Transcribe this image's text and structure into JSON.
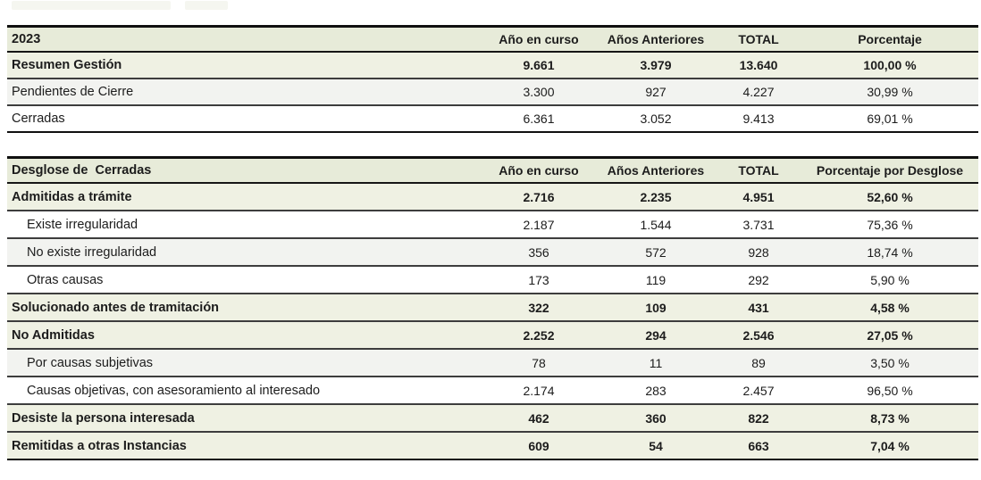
{
  "colors": {
    "header_bg": "#e7ebd9",
    "emphasis_row_bg": "#eff1e3",
    "alt_row_bg": "#f2f3f0",
    "table_border": "#101010",
    "row_separator": "#3d3d3d",
    "text": "#1c1c1c"
  },
  "tables": [
    {
      "title": "2023",
      "columns": [
        "Año en curso",
        "Años Anteriores",
        "TOTAL",
        "Porcentaje"
      ],
      "rows": [
        {
          "label": "Resumen Gestión",
          "values": [
            "9.661",
            "3.979",
            "13.640",
            "100,00 %"
          ]
        },
        {
          "label": "Pendientes de Cierre",
          "values": [
            "3.300",
            "927",
            "4.227",
            "30,99 %"
          ]
        },
        {
          "label": "Cerradas",
          "values": [
            "6.361",
            "3.052",
            "9.413",
            "69,01 %"
          ]
        }
      ]
    },
    {
      "title": "Desglose de  Cerradas",
      "columns": [
        "Año en curso",
        "Años Anteriores",
        "TOTAL",
        "Porcentaje por Desglose"
      ],
      "rows": [
        {
          "label": "Admitidas a trámite",
          "values": [
            "2.716",
            "2.235",
            "4.951",
            "52,60 %"
          ]
        },
        {
          "label": "Existe irregularidad",
          "values": [
            "2.187",
            "1.544",
            "3.731",
            "75,36 %"
          ]
        },
        {
          "label": "No existe irregularidad",
          "values": [
            "356",
            "572",
            "928",
            "18,74 %"
          ]
        },
        {
          "label": "Otras causas",
          "values": [
            "173",
            "119",
            "292",
            "5,90 %"
          ]
        },
        {
          "label": "Solucionado antes de tramitación",
          "values": [
            "322",
            "109",
            "431",
            "4,58 %"
          ]
        },
        {
          "label": "No Admitidas",
          "values": [
            "2.252",
            "294",
            "2.546",
            "27,05 %"
          ]
        },
        {
          "label": "Por causas subjetivas",
          "values": [
            "78",
            "11",
            "89",
            "3,50 %"
          ]
        },
        {
          "label": "Causas objetivas, con asesoramiento al interesado",
          "values": [
            "2.174",
            "283",
            "2.457",
            "96,50 %"
          ]
        },
        {
          "label": "Desiste la persona interesada",
          "values": [
            "462",
            "360",
            "822",
            "8,73 %"
          ]
        },
        {
          "label": "Remitidas a otras Instancias",
          "values": [
            "609",
            "54",
            "663",
            "7,04 %"
          ]
        }
      ]
    }
  ]
}
